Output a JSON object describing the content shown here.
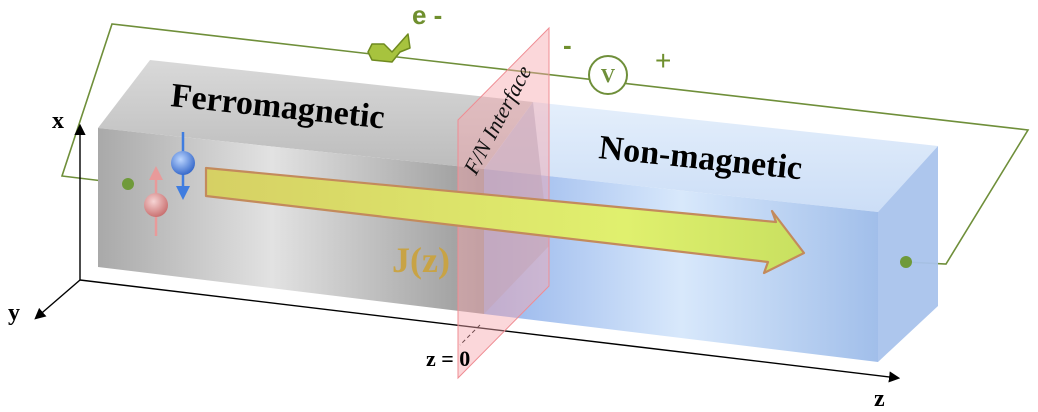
{
  "labels": {
    "ferromagnetic": "Ferromagnetic",
    "non_magnetic": "Non-magnetic",
    "interface": "F/N Interface",
    "current": "J(z)",
    "electron": "e -",
    "voltmeter": "V",
    "minus": "-",
    "plus": "+",
    "z_zero": "z = 0"
  },
  "axes": {
    "x": "x",
    "y": "y",
    "z": "z"
  },
  "colors": {
    "circuit_wire": "#5f7f2a",
    "electron_arrow": "#9dbb3a",
    "label_green": "#6f8f2e",
    "current_arrow": "#d4ea6a",
    "current_label": "#c9a23f",
    "spin_up": "#e88a8a",
    "spin_down": "#3f7de0",
    "ferromagnet": "#bdbdbd",
    "non_magnet": "#b8d2f5",
    "interface_plane": "#f7a3a8"
  }
}
